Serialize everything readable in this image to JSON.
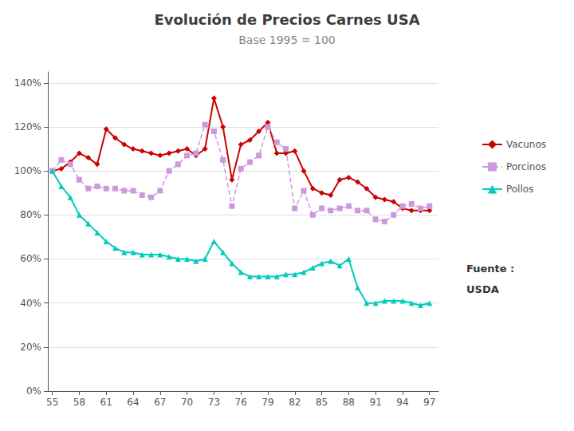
{
  "chart_data": {
    "type": "line",
    "title": "Evolución de Precios Carnes USA",
    "subtitle": "Base 1995 = 100",
    "x": [
      55,
      56,
      57,
      58,
      59,
      60,
      61,
      62,
      63,
      64,
      65,
      66,
      67,
      68,
      69,
      70,
      71,
      72,
      73,
      74,
      75,
      76,
      77,
      78,
      79,
      80,
      81,
      82,
      83,
      84,
      85,
      86,
      87,
      88,
      89,
      90,
      91,
      92,
      93,
      94,
      95,
      96,
      97
    ],
    "series": [
      {
        "name": "Vacunos",
        "color": "#CC0000",
        "marker": "diamond",
        "line_style": "solid",
        "values": [
          100,
          101,
          104,
          108,
          106,
          103,
          119,
          115,
          112,
          110,
          109,
          108,
          107,
          108,
          109,
          110,
          107,
          110,
          133,
          120,
          96,
          112,
          114,
          118,
          122,
          108,
          108,
          109,
          100,
          92,
          90,
          89,
          96,
          97,
          95,
          92,
          88,
          87,
          86,
          83,
          82,
          82,
          82
        ]
      },
      {
        "name": "Porcinos",
        "color": "#CC99DD",
        "marker": "square",
        "line_style": "dashed",
        "values": [
          100,
          105,
          103,
          96,
          92,
          93,
          92,
          92,
          91,
          91,
          89,
          88,
          91,
          100,
          103,
          107,
          108,
          121,
          118,
          105,
          84,
          101,
          104,
          107,
          120,
          113,
          110,
          83,
          91,
          80,
          83,
          82,
          83,
          84,
          82,
          82,
          78,
          77,
          80,
          84,
          85,
          83,
          84
        ]
      },
      {
        "name": "Pollos",
        "color": "#00CCBB",
        "marker": "triangle",
        "line_style": "solid",
        "values": [
          100,
          93,
          88,
          80,
          76,
          72,
          68,
          65,
          63,
          63,
          62,
          62,
          62,
          61,
          60,
          60,
          59,
          60,
          68,
          63,
          58,
          54,
          52,
          52,
          52,
          52,
          53,
          53,
          54,
          56,
          58,
          59,
          57,
          60,
          47,
          40,
          40,
          41,
          41,
          41,
          40,
          39,
          40
        ]
      }
    ],
    "xlim": [
      54.5,
      98
    ],
    "xticks": [
      55,
      58,
      61,
      64,
      67,
      70,
      73,
      76,
      79,
      82,
      85,
      88,
      91,
      94,
      97
    ],
    "ylim": [
      0,
      145
    ],
    "yticks": [
      {
        "value": 0,
        "label": "0%"
      },
      {
        "value": 20,
        "label": "20%"
      },
      {
        "value": 40,
        "label": "40%"
      },
      {
        "value": 60,
        "label": "60%"
      },
      {
        "value": 80,
        "label": "80%"
      },
      {
        "value": 100,
        "label": "100%"
      },
      {
        "value": 120,
        "label": "120%"
      },
      {
        "value": 140,
        "label": "140%"
      }
    ],
    "grid": true,
    "legend": "right",
    "annotations": [
      "Fuente :",
      "USDA"
    ]
  }
}
